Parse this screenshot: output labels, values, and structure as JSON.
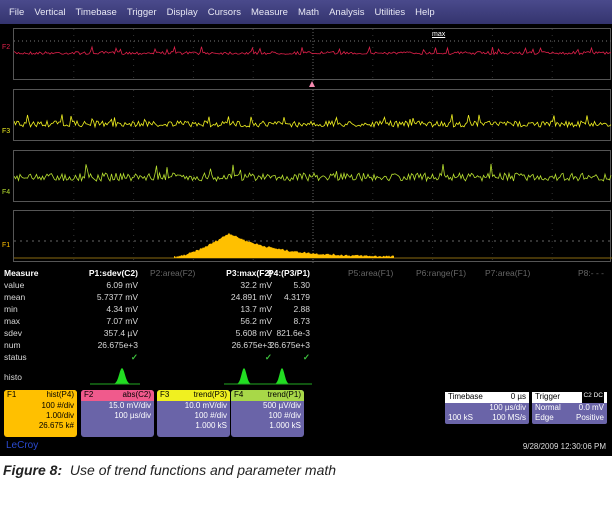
{
  "menu": [
    "File",
    "Vertical",
    "Timebase",
    "Trigger",
    "Display",
    "Cursors",
    "Measure",
    "Math",
    "Analysis",
    "Utilities",
    "Help"
  ],
  "traces": [
    {
      "label": "F2",
      "color": "#e0204a",
      "marker": "max"
    },
    {
      "label": "F3",
      "color": "#f0f020"
    },
    {
      "label": "F4",
      "color": "#b8e030"
    },
    {
      "label": "F1",
      "color": "#ffc000"
    }
  ],
  "measure": {
    "title": "Measure",
    "row_labels": [
      "value",
      "mean",
      "min",
      "max",
      "sdev",
      "num",
      "status",
      "histo"
    ],
    "columns": [
      {
        "header": "P1:sdev(C2)",
        "active": true,
        "values": [
          "6.09 mV",
          "5.7377 mV",
          "4.34 mV",
          "7.07 mV",
          "357.4 µV",
          "26.675e+3"
        ],
        "status": "✓"
      },
      {
        "header": "P2:area(F2)",
        "active": false
      },
      {
        "header": "P3:max(F2)",
        "active": true,
        "values": [
          "32.2 mV",
          "24.891 mV",
          "13.7 mV",
          "56.2 mV",
          "5.608 mV",
          "26.675e+3"
        ],
        "status": "✓"
      },
      {
        "header": "P4:(P3/P1)",
        "active": true,
        "values": [
          "5.30",
          "4.3179",
          "2.88",
          "8.73",
          "821.6e-3",
          "26.675e+3"
        ],
        "status": "✓"
      },
      {
        "header": "P5:area(F1)",
        "active": false
      },
      {
        "header": "P6:range(F1)",
        "active": false
      },
      {
        "header": "P7:area(F1)",
        "active": false
      },
      {
        "header": "P8:- - -",
        "active": false
      }
    ]
  },
  "functions": [
    {
      "name": "F1",
      "op": "hist(P4)",
      "color": "#ffc000",
      "lines": [
        "100 #/div",
        "1.00/div",
        "26.675 k#"
      ]
    },
    {
      "name": "F2",
      "op": "abs(C2)",
      "color": "#f05a8c",
      "lines": [
        "15.0 mV/div",
        "100 µs/div"
      ]
    },
    {
      "name": "F3",
      "op": "trend(P3)",
      "color": "#f0f020",
      "lines": [
        "10.0 mV/div",
        "100 #/div",
        "1.000 kS"
      ]
    },
    {
      "name": "F4",
      "op": "trend(P1)",
      "color": "#a8d848",
      "lines": [
        "500 µV/div",
        "100 #/div",
        "1.000 kS"
      ]
    }
  ],
  "timebase": {
    "title": "Timebase",
    "delay": "0 µs",
    "per_div": "100 µs/div",
    "samples": "100 kS",
    "rate": "100 MS/s"
  },
  "trigger": {
    "title": "Trigger",
    "source": "C2 DC",
    "mode": "Normal",
    "level": "0.0 mV",
    "type": "Edge",
    "slope": "Positive"
  },
  "brand": "LeCroy",
  "timestamp": "9/28/2009 12:30:06 PM",
  "caption": {
    "label": "Figure 8:",
    "text": "Use of trend functions and parameter math"
  }
}
